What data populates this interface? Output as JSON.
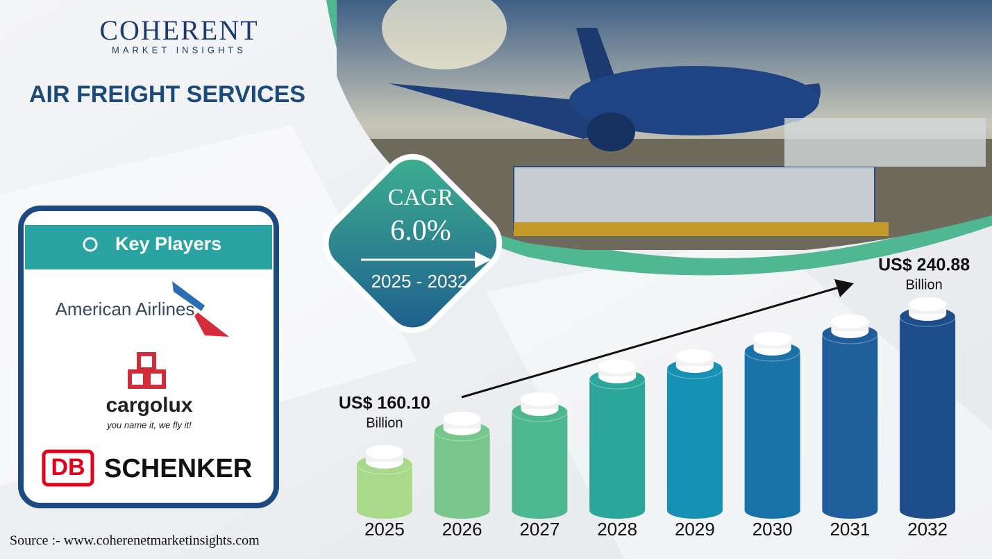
{
  "logo": {
    "name": "COHERENT",
    "tagline": "MARKET INSIGHTS"
  },
  "cagr": {
    "label": "CAGR",
    "value": "6.0%",
    "period": "2025 - 2032"
  },
  "key_players": {
    "title": "Key Players",
    "players": [
      {
        "name": "American Airlines"
      },
      {
        "name": "cargolux",
        "slogan": "you name it, we fly it!"
      },
      {
        "badge": "DB",
        "name": "SCHENKER"
      }
    ]
  },
  "source": "Source :- www.coherenetmarketinsights.com",
  "chart_data": {
    "type": "bar",
    "title": "AIR FREIGHT SERVICES",
    "categories": [
      "2025",
      "2026",
      "2027",
      "2028",
      "2029",
      "2030",
      "2031",
      "2032"
    ],
    "values": [
      160.1,
      178.3,
      188.9,
      206.7,
      212.4,
      221.9,
      231.4,
      240.88
    ],
    "value_labels": [
      "US$ 160.10",
      null,
      null,
      null,
      null,
      null,
      null,
      "US$ 240.88"
    ],
    "unit": "Billion",
    "colors": [
      "#a9d98b",
      "#78c68c",
      "#4db88f",
      "#2aa79a",
      "#1690b3",
      "#1a73a8",
      "#1f5e9a",
      "#1e4d8c"
    ],
    "ylim": [
      135,
      250
    ]
  }
}
